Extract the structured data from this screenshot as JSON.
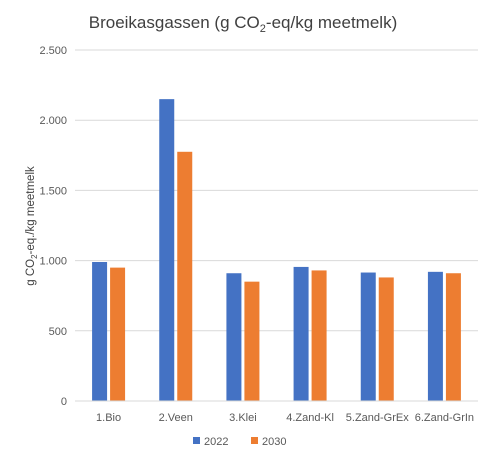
{
  "chart_data": {
    "type": "bar",
    "title": {
      "pre": "Broeikasgassen (g CO",
      "sub": "2",
      "post": "-eq/kg meetmelk)"
    },
    "ylabel": {
      "pre": "g CO",
      "sub": "2",
      "post": "-eq./kg meetmelk"
    },
    "xlabel": "",
    "categories": [
      "1.Bio",
      "2.Veen",
      "3.Klei",
      "4.Zand-Kl",
      "5.Zand-GrEx",
      "6.Zand-GrIn"
    ],
    "series": [
      {
        "name": "2022",
        "color": "#4472C4",
        "values": [
          990,
          2150,
          910,
          955,
          915,
          920
        ]
      },
      {
        "name": "2030",
        "color": "#ED7D31",
        "values": [
          950,
          1775,
          850,
          930,
          880,
          910
        ]
      }
    ],
    "ylim": [
      0,
      2500
    ],
    "yticks": [
      {
        "value": 0,
        "label": "0"
      },
      {
        "value": 500,
        "label": "500"
      },
      {
        "value": 1000,
        "label": "1.000"
      },
      {
        "value": 1500,
        "label": "1.500"
      },
      {
        "value": 2000,
        "label": "2.000"
      },
      {
        "value": 2500,
        "label": "2.500"
      }
    ],
    "grid": true,
    "legend": "bottom-center"
  }
}
